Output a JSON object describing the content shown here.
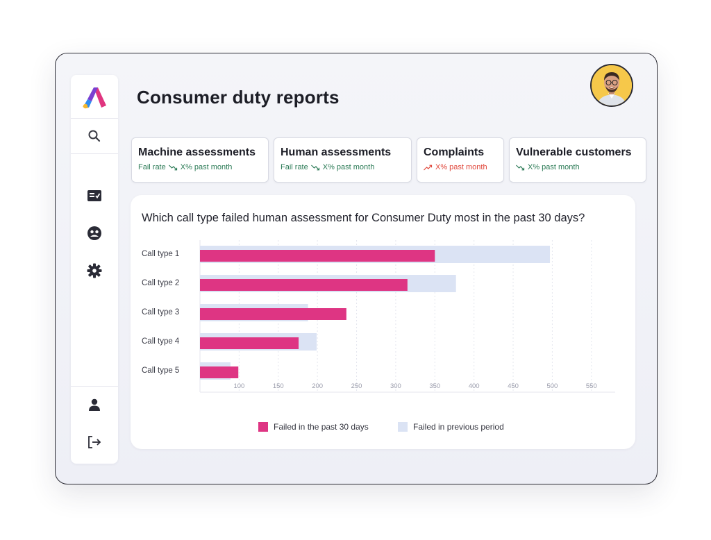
{
  "header": {
    "title": "Consumer duty reports"
  },
  "sidebar": {
    "items": [
      {
        "name": "search",
        "icon": "search-icon"
      },
      {
        "name": "reports",
        "icon": "checklist-card-icon"
      },
      {
        "name": "team",
        "icon": "group-badge-icon"
      },
      {
        "name": "settings",
        "icon": "gear-icon"
      },
      {
        "name": "profile",
        "icon": "person-icon"
      },
      {
        "name": "logout",
        "icon": "logout-icon"
      }
    ]
  },
  "cards": [
    {
      "title": "Machine assessments",
      "label": "Fail rate",
      "value": "X% past month",
      "trend": "down",
      "color": "#2a7a55"
    },
    {
      "title": "Human assessments",
      "label": "Fail rate",
      "value": "X% past month",
      "trend": "down",
      "color": "#2a7a55"
    },
    {
      "title": "Complaints",
      "label": "",
      "value": "X% past month",
      "trend": "up",
      "color": "#e0463a"
    },
    {
      "title": "Vulnerable customers",
      "label": "",
      "value": "X% past month",
      "trend": "down",
      "color": "#2a7a55"
    }
  ],
  "panel": {
    "question": "Which call type failed human assessment for Consumer Duty most in the past 30 days?"
  },
  "chart_data": {
    "type": "bar",
    "orientation": "horizontal",
    "categories": [
      "Call type 1",
      "Call type 2",
      "Call type 3",
      "Call type 4",
      "Call type 5"
    ],
    "series": [
      {
        "name": "Failed in the past 30 days",
        "color": "#de3583",
        "values": [
          350,
          315,
          237,
          176,
          99
        ]
      },
      {
        "name": "Failed in previous period",
        "color": "#dbe3f4",
        "values": [
          497,
          377,
          188,
          199,
          89
        ]
      }
    ],
    "xlim": [
      50,
      575
    ],
    "xticks": [
      100,
      150,
      200,
      250,
      300,
      350,
      400,
      450,
      500,
      550
    ],
    "grid": true,
    "legend": "bottom"
  },
  "colors": {
    "accent": "#de3583",
    "previous": "#dbe3f4",
    "positive": "#2a7a55",
    "negative": "#e0463a"
  }
}
